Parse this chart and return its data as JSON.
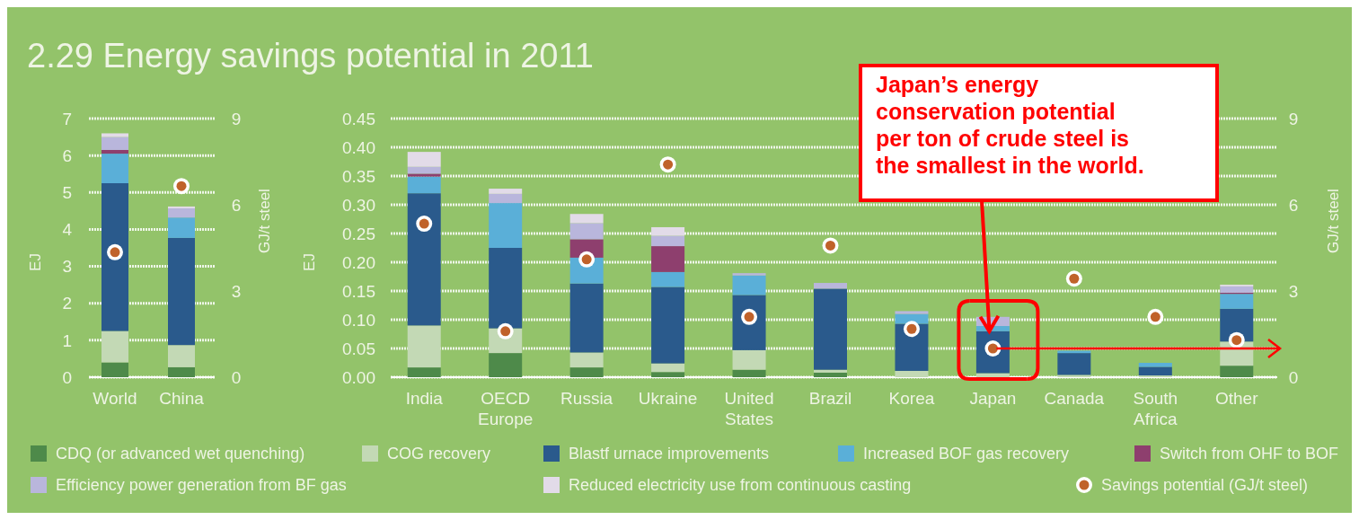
{
  "chart_data": [
    {
      "type": "bar",
      "stacked": true,
      "title": "2.29 Energy savings potential in 2011",
      "ylabel": "EJ",
      "y2label": "GJ/t steel",
      "categories": [
        "World",
        "China"
      ],
      "series": [
        {
          "color": "#4e8a4a",
          "values": [
            0.4,
            0.27
          ]
        },
        {
          "color": "#c3d9b5",
          "values": [
            0.85,
            0.6
          ]
        },
        {
          "color": "#2a5a8c",
          "values": [
            4.0,
            2.9
          ]
        },
        {
          "color": "#5aafd8",
          "values": [
            0.8,
            0.55
          ]
        },
        {
          "color": "#8e3f6e",
          "values": [
            0.1,
            0
          ]
        },
        {
          "color": "#b9b6dc",
          "values": [
            0.35,
            0.25
          ]
        },
        {
          "color": "#e2dbe8",
          "values": [
            0.1,
            0.05
          ]
        },
        {
          "type": "scatter",
          "axis": "y2",
          "color": "#c0622a",
          "marker": "circle",
          "values": [
            4.35,
            6.65
          ]
        }
      ],
      "ylim": [
        0,
        7
      ],
      "yticks": [
        0,
        1,
        2,
        3,
        4,
        5,
        6,
        7
      ],
      "y2lim": [
        0,
        9
      ],
      "y2ticks": [
        0,
        3,
        6,
        9
      ],
      "grid": "y"
    },
    {
      "type": "bar",
      "stacked": true,
      "ylabel": "EJ",
      "y2label": "GJ/t steel",
      "legend": "bottom",
      "categories": [
        "India",
        "OECD Europe",
        "Russia",
        "Ukraine",
        "United States",
        "Brazil",
        "Korea",
        "Japan",
        "Canada",
        "South Africa",
        "Other"
      ],
      "series": [
        {
          "name": "CDQ (or advanced wet quenching)",
          "color": "#4e8a4a",
          "values": [
            0.017,
            0.042,
            0.017,
            0.009,
            0.013,
            0.008,
            0,
            0,
            0,
            0,
            0.02
          ]
        },
        {
          "name": "COG recovery",
          "color": "#c3d9b5",
          "values": [
            0.073,
            0.043,
            0.026,
            0.015,
            0.034,
            0.005,
            0.011,
            0.007,
            0.004,
            0.003,
            0.042
          ]
        },
        {
          "name": "Blastf urnace improvements",
          "color": "#2a5a8c",
          "values": [
            0.23,
            0.14,
            0.12,
            0.133,
            0.096,
            0.141,
            0.082,
            0.073,
            0.038,
            0.015,
            0.057
          ]
        },
        {
          "name": "Increased BOF gas recovery",
          "color": "#5aafd8",
          "values": [
            0.029,
            0.078,
            0.045,
            0.026,
            0.034,
            0,
            0.017,
            0.009,
            0.004,
            0.007,
            0.026
          ]
        },
        {
          "name": "Switch from OHF to BOF",
          "color": "#8e3f6e",
          "values": [
            0.005,
            0,
            0.032,
            0.045,
            0,
            0,
            0,
            0,
            0,
            0,
            0.002
          ]
        },
        {
          "name": "Efficiency power generation from BF gas",
          "color": "#b9b6dc",
          "values": [
            0.012,
            0.016,
            0.028,
            0.018,
            0.004,
            0.01,
            0.005,
            0.016,
            0,
            0,
            0.011
          ]
        },
        {
          "name": "Reduced electricity use from continuous casting",
          "color": "#e2dbe8",
          "values": [
            0.026,
            0.009,
            0.016,
            0.015,
            0,
            0,
            0,
            0,
            0,
            0,
            0.003
          ]
        },
        {
          "name": "Savings potential (GJ/t steel)",
          "type": "scatter",
          "axis": "y2",
          "color": "#c0622a",
          "marker": "circle",
          "values": [
            5.34,
            1.6,
            4.1,
            7.4,
            2.1,
            4.58,
            1.68,
            1.0,
            3.43,
            2.1,
            1.29
          ]
        }
      ],
      "ylim": [
        0,
        0.45
      ],
      "yticks": [
        {
          "value": 0,
          "label": "0.00"
        },
        0.05,
        {
          "value": 0.1,
          "label": "0.10"
        },
        0.15,
        {
          "value": 0.2,
          "label": "0.20"
        },
        0.25,
        {
          "value": 0.3,
          "label": "0.30"
        },
        0.35,
        {
          "value": 0.4,
          "label": "0.40"
        },
        0.45
      ],
      "y2lim": [
        0,
        9
      ],
      "y2ticks": [
        0,
        3,
        6,
        9
      ],
      "grid": "y",
      "annotations": [
        {
          "text": "Japan’s energy conservation potential per ton of crude steel is the smallest in the world.",
          "x": "Japan",
          "y": 0.08
        }
      ]
    }
  ]
}
